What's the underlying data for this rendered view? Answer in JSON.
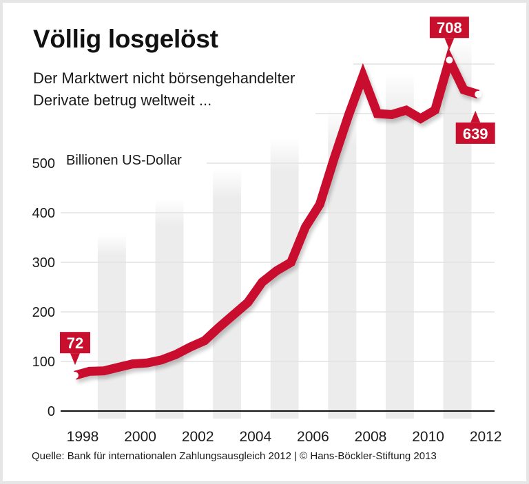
{
  "title": "Völlig losgelöst",
  "subtitle_lines": [
    "Der Marktwert nicht börsengehandelter",
    "Derivate betrug weltweit ..."
  ],
  "source": "Quelle: Bank für internationalen Zahlungsausgleich 2012 | © Hans-Böckler-Stiftung 2013",
  "colors": {
    "line": "#c8102e",
    "callout": "#c8102e",
    "bar": "#ececec",
    "grid": "#e2e2e2",
    "axis": "#111111"
  },
  "chart_data": {
    "type": "line",
    "title": "Völlig losgelöst",
    "subtitle": "Der Marktwert nicht börsengehandelter Derivate betrug weltweit ...",
    "ylabel": "Billionen US-Dollar",
    "xlabel": "",
    "ylim": [
      0,
      700
    ],
    "yticks": [
      0,
      100,
      200,
      300,
      400,
      500
    ],
    "xlim": [
      1998,
      2012.5
    ],
    "xticks": [
      "1998",
      "2000",
      "2002",
      "2004",
      "2006",
      "2008",
      "2010",
      "2012"
    ],
    "grid": true,
    "shaded_years": [
      1999,
      2001,
      2003,
      2005,
      2007,
      2009,
      2011
    ],
    "series": [
      {
        "name": "Marktwert nicht börsengehandelter Derivate",
        "x": [
          1998.0,
          1998.5,
          1999.0,
          1999.5,
          2000.0,
          2000.5,
          2001.0,
          2001.5,
          2002.0,
          2002.5,
          2003.0,
          2003.5,
          2004.0,
          2004.5,
          2005.0,
          2005.5,
          2006.0,
          2006.5,
          2007.0,
          2007.5,
          2008.0,
          2008.5,
          2009.0,
          2009.5,
          2010.0,
          2010.5,
          2011.0,
          2011.5,
          2012.0
        ],
        "values": [
          72,
          80,
          81,
          88,
          95,
          97,
          103,
          114,
          129,
          142,
          169,
          194,
          219,
          260,
          283,
          300,
          371,
          417,
          510,
          597,
          676,
          600,
          598,
          607,
          590,
          607,
          708,
          648,
          639
        ]
      }
    ],
    "annotations": [
      {
        "label": "72",
        "x": 1998.0,
        "value": 72,
        "position": "above"
      },
      {
        "label": "708",
        "x": 2011.0,
        "value": 708,
        "position": "above"
      },
      {
        "label": "639",
        "x": 2012.0,
        "value": 639,
        "position": "below"
      }
    ]
  }
}
